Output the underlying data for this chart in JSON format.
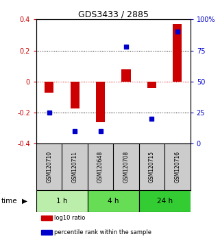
{
  "title": "GDS3433 / 2885",
  "samples": [
    "GSM120710",
    "GSM120711",
    "GSM120648",
    "GSM120708",
    "GSM120715",
    "GSM120716"
  ],
  "log10_ratio": [
    -0.07,
    -0.175,
    -0.26,
    0.08,
    -0.04,
    0.37
  ],
  "percentile_rank": [
    25,
    10,
    10,
    78,
    20,
    90
  ],
  "ylim": [
    -0.4,
    0.4
  ],
  "yticks": [
    -0.4,
    -0.2,
    0.0,
    0.2,
    0.4
  ],
  "ytick_labels_left": [
    "-0.4",
    "-0.2",
    "0",
    "0.2",
    "0.4"
  ],
  "ytick_labels_right": [
    "0",
    "25",
    "50",
    "75",
    "100%"
  ],
  "bar_color": "#cc0000",
  "dot_color": "#0000cc",
  "hline_color": "#cc0000",
  "dotted_color": "#000000",
  "time_groups": [
    {
      "label": "1 h",
      "samples": [
        0,
        1
      ],
      "color": "#bbeeaa"
    },
    {
      "label": "4 h",
      "samples": [
        2,
        3
      ],
      "color": "#66dd55"
    },
    {
      "label": "24 h",
      "samples": [
        4,
        5
      ],
      "color": "#33cc33"
    }
  ],
  "legend_items": [
    {
      "label": "log10 ratio",
      "color": "#cc0000"
    },
    {
      "label": "percentile rank within the sample",
      "color": "#0000cc"
    }
  ],
  "bar_width": 0.35,
  "background_color": "#ffffff",
  "sample_box_color": "#cccccc"
}
